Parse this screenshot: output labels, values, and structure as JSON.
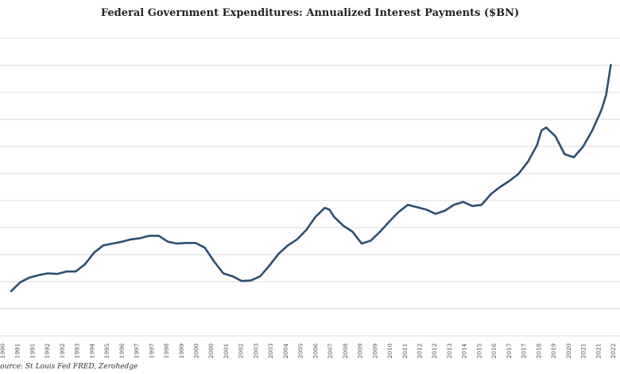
{
  "chart_data": {
    "type": "line",
    "title": "Federal Government Expenditures: Annualized Interest Payments ($BN)",
    "source": "Source: St Louis Fed FRED, Zerohedge",
    "xlabel": "",
    "ylabel": "",
    "x_tick_labels": [
      "1990",
      "1991",
      "1991",
      "1992",
      "1992",
      "1993",
      "1994",
      "1995",
      "1996",
      "1997",
      "1997",
      "1998",
      "1999",
      "2000",
      "2000",
      "2001",
      "2002",
      "2003",
      "2003",
      "2004",
      "2005",
      "2006",
      "2007",
      "2008",
      "2009",
      "2009",
      "2010",
      "2011",
      "2012",
      "2012",
      "2013",
      "2014",
      "2015",
      "2016",
      "2017",
      "2017",
      "2018",
      "2019",
      "2020",
      "2021",
      "2021",
      "2022"
    ],
    "y_tick_labels": [
      "",
      "",
      "",
      "",
      "",
      "",
      "",
      "",
      "",
      "",
      "",
      ""
    ],
    "grid": true,
    "legend": "none",
    "line_color": "#2d4f73",
    "x": [
      1990.0,
      1990.5,
      1991.0,
      1991.5,
      1992.0,
      1992.5,
      1993.0,
      1993.5,
      1994.0,
      1994.5,
      1995.0,
      1995.5,
      1996.0,
      1996.5,
      1997.0,
      1997.5,
      1998.0,
      1998.5,
      1999.0,
      1999.5,
      2000.0,
      2000.5,
      2001.0,
      2001.5,
      2002.0,
      2002.5,
      2003.0,
      2003.5,
      2004.0,
      2004.5,
      2005.0,
      2005.5,
      2006.0,
      2006.5,
      2007.0,
      2007.25,
      2007.5,
      2008.0,
      2008.5,
      2009.0,
      2009.5,
      2010.0,
      2010.5,
      2011.0,
      2011.5,
      2012.0,
      2012.5,
      2013.0,
      2013.5,
      2014.0,
      2014.5,
      2015.0,
      2015.5,
      2016.0,
      2016.5,
      2017.0,
      2017.5,
      2018.0,
      2018.5,
      2018.75,
      2019.0,
      2019.5,
      2020.0,
      2020.5,
      2021.0,
      2021.5,
      2022.0,
      2022.25,
      2022.5
    ],
    "y": [
      275,
      290,
      298,
      302,
      305,
      304,
      308,
      308,
      320,
      340,
      352,
      355,
      358,
      362,
      364,
      368,
      368,
      358,
      355,
      356,
      356,
      348,
      325,
      305,
      300,
      292,
      293,
      300,
      318,
      338,
      352,
      362,
      378,
      400,
      415,
      412,
      400,
      385,
      375,
      355,
      360,
      375,
      392,
      408,
      420,
      416,
      412,
      405,
      410,
      420,
      425,
      418,
      420,
      438,
      450,
      460,
      472,
      492,
      520,
      545,
      550,
      535,
      505,
      500,
      518,
      545,
      580,
      605,
      655
    ],
    "ylim": [
      200,
      700
    ],
    "xlim": [
      1990,
      2023
    ]
  }
}
